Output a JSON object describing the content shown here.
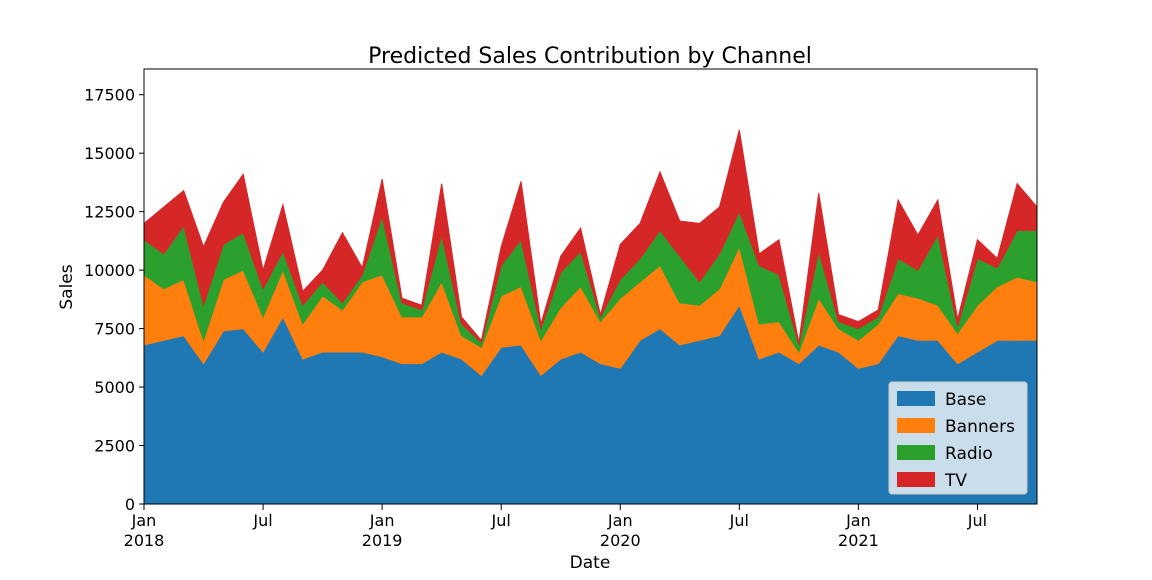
{
  "chart_data": {
    "type": "stacked_area",
    "title": "Predicted Sales Contribution by Channel",
    "xlabel": "Date",
    "ylabel": "Sales",
    "x": [
      "2018-01",
      "2018-02",
      "2018-03",
      "2018-04",
      "2018-05",
      "2018-06",
      "2018-07",
      "2018-08",
      "2018-09",
      "2018-10",
      "2018-11",
      "2018-12",
      "2019-01",
      "2019-02",
      "2019-03",
      "2019-04",
      "2019-05",
      "2019-06",
      "2019-07",
      "2019-08",
      "2019-09",
      "2019-10",
      "2019-11",
      "2019-12",
      "2020-01",
      "2020-02",
      "2020-03",
      "2020-04",
      "2020-05",
      "2020-06",
      "2020-07",
      "2020-08",
      "2020-09",
      "2020-10",
      "2020-11",
      "2020-12",
      "2021-01",
      "2021-02",
      "2021-03",
      "2021-04",
      "2021-05",
      "2021-06",
      "2021-07",
      "2021-08",
      "2021-09",
      "2021-10"
    ],
    "series": [
      {
        "name": "Base",
        "color": "#1f77b4",
        "values": [
          6800,
          7000,
          7200,
          6000,
          7400,
          7500,
          6500,
          8000,
          6200,
          6500,
          6500,
          6500,
          6300,
          6000,
          6000,
          6500,
          6200,
          5500,
          6700,
          6800,
          5500,
          6200,
          6500,
          6000,
          5800,
          7000,
          7500,
          6800,
          7000,
          7200,
          8500,
          6200,
          6500,
          6000,
          6800,
          6500,
          5800,
          6000,
          7200,
          7000,
          7000,
          6000,
          6500,
          7000,
          7000,
          7000
        ]
      },
      {
        "name": "Banners",
        "color": "#ff7f0e",
        "values": [
          3000,
          2200,
          2400,
          1000,
          2200,
          2500,
          1500,
          2000,
          1500,
          2400,
          1800,
          3000,
          3500,
          2000,
          2000,
          3000,
          1000,
          1200,
          2200,
          2500,
          1500,
          2200,
          2800,
          1800,
          3000,
          2500,
          2700,
          1800,
          1500,
          2000,
          2500,
          1500,
          1300,
          500,
          2000,
          1000,
          1200,
          1700,
          1800,
          1800,
          1500,
          1300,
          2000,
          2300,
          2700,
          2500
        ]
      },
      {
        "name": "Radio",
        "color": "#2ca02c",
        "values": [
          1500,
          1500,
          2300,
          1500,
          1500,
          1600,
          1200,
          800,
          800,
          600,
          300,
          300,
          2500,
          600,
          300,
          2000,
          500,
          200,
          1300,
          2000,
          500,
          1500,
          1500,
          200,
          800,
          1000,
          1500,
          2000,
          1000,
          1500,
          1500,
          2500,
          2000,
          300,
          2000,
          300,
          500,
          300,
          1500,
          1200,
          3000,
          300,
          2000,
          800,
          2000,
          2200
        ]
      },
      {
        "name": "TV",
        "color": "#d62728",
        "values": [
          700,
          2000,
          1500,
          2500,
          1800,
          2500,
          800,
          2000,
          600,
          500,
          3000,
          300,
          1600,
          200,
          200,
          2200,
          300,
          100,
          800,
          2500,
          200,
          700,
          1000,
          100,
          1500,
          1500,
          2500,
          1500,
          2500,
          2000,
          3500,
          500,
          1500,
          100,
          2500,
          300,
          300,
          300,
          2500,
          1500,
          1500,
          300,
          800,
          400,
          2000,
          1000
        ]
      }
    ],
    "xlim": [
      "2018-01",
      "2021-10"
    ],
    "xticks": [
      {
        "value": "2018-01",
        "label": "Jan",
        "year": "2018"
      },
      {
        "value": "2018-07",
        "label": "Jul"
      },
      {
        "value": "2019-01",
        "label": "Jan",
        "year": "2019"
      },
      {
        "value": "2019-07",
        "label": "Jul"
      },
      {
        "value": "2020-01",
        "label": "Jan",
        "year": "2020"
      },
      {
        "value": "2020-07",
        "label": "Jul"
      },
      {
        "value": "2021-01",
        "label": "Jan",
        "year": "2021"
      },
      {
        "value": "2021-07",
        "label": "Jul"
      }
    ],
    "ylim": [
      0,
      18600
    ],
    "yticks": [
      0,
      2500,
      5000,
      7500,
      10000,
      12500,
      15000,
      17500
    ],
    "legend": "lower right",
    "grid": false
  }
}
